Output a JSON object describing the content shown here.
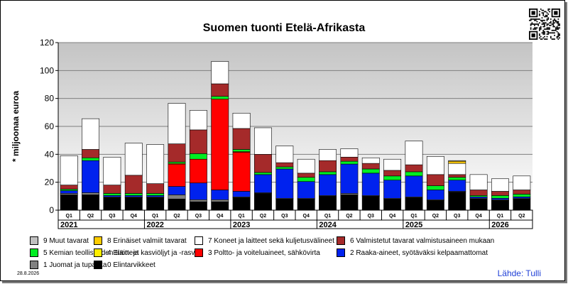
{
  "chart_data": {
    "type": "bar",
    "stacked": true,
    "title": "Suomen tuonti Etelä-Afrikasta",
    "ylabel": "* miljoonaa euroa",
    "ylim": [
      0,
      120
    ],
    "yticks": [
      0,
      20,
      40,
      60,
      80,
      100,
      120
    ],
    "grid": true,
    "legend_position": "bottom",
    "categories": [
      "Q1",
      "Q2",
      "Q3",
      "Q4",
      "Q1",
      "Q2",
      "Q3",
      "Q4",
      "Q1",
      "Q2",
      "Q3",
      "Q4",
      "Q1",
      "Q2",
      "Q3",
      "Q4",
      "Q1",
      "Q2",
      "Q3",
      "Q4",
      "Q1",
      "Q2"
    ],
    "years": [
      {
        "label": "2021",
        "start": 0,
        "count": 4
      },
      {
        "label": "2022",
        "start": 4,
        "count": 4
      },
      {
        "label": "2023",
        "start": 8,
        "count": 4
      },
      {
        "label": "2024",
        "start": 12,
        "count": 4
      },
      {
        "label": "2025",
        "start": 16,
        "count": 4
      },
      {
        "label": "2026",
        "start": 20,
        "count": 2
      }
    ],
    "series": [
      {
        "name": "0 Elintarvikkeet",
        "color": "#000000",
        "values": [
          11,
          11,
          9,
          9,
          9,
          8,
          6,
          6,
          9,
          12,
          8,
          8,
          10,
          11,
          10,
          8,
          9,
          7,
          13,
          8,
          7,
          8
        ]
      },
      {
        "name": "1 Juomat ja tupakka",
        "color": "#808080",
        "values": [
          1,
          1.5,
          0.5,
          0.5,
          0.5,
          3,
          1.5,
          1.5,
          0.5,
          0.5,
          0.5,
          0.5,
          0.5,
          1,
          0.5,
          0.5,
          0.5,
          0.5,
          0.5,
          0.5,
          0.5,
          0.5
        ]
      },
      {
        "name": "2 Raaka-aineet, syötäväksi kelpaamattomat",
        "color": "#0022ee",
        "values": [
          2,
          23,
          1,
          1,
          1,
          6,
          12,
          7,
          4,
          13,
          21,
          12,
          15,
          21,
          16,
          13,
          15,
          7,
          8,
          1,
          1,
          1
        ]
      },
      {
        "name": "3 Poltto- ja voiteluaineet, sähkövirta",
        "color": "#ff0000",
        "values": [
          0,
          0,
          0,
          0,
          0,
          16,
          17,
          65,
          28,
          0,
          0,
          0,
          0,
          0,
          0,
          0,
          0,
          0,
          0,
          0,
          0,
          0
        ]
      },
      {
        "name": "4 Eläin- ja kasviöljyt ja -rasvat",
        "color": "#ffee00",
        "values": [
          0,
          0,
          0,
          0,
          0,
          0.5,
          0,
          0,
          0.5,
          0,
          0,
          0,
          0,
          0,
          0,
          0,
          0,
          0,
          0,
          0,
          0,
          0
        ]
      },
      {
        "name": "5 Kemian teollisuuden tuotteet",
        "color": "#00ee22",
        "values": [
          1,
          2,
          1.5,
          1.5,
          1.5,
          1,
          4,
          2,
          1.5,
          1.5,
          1.5,
          3,
          2,
          2,
          3,
          3,
          3,
          3,
          2,
          1,
          2,
          2
        ]
      },
      {
        "name": "6 Valmistetut tavarat valmistusaineen mukaan",
        "color": "#a52a2a",
        "values": [
          3,
          6,
          6,
          13,
          7,
          13,
          17,
          9,
          15,
          13,
          3,
          3,
          8,
          3,
          4,
          4,
          5,
          8,
          2,
          4,
          3,
          3
        ]
      },
      {
        "name": "7 Koneet ja laitteet sekä kuljetusvälineet",
        "color": "#ffffff",
        "values": [
          21,
          22,
          20,
          23,
          28,
          29,
          14,
          16,
          11,
          19,
          12,
          10,
          8,
          6,
          4,
          8,
          17,
          13,
          8,
          11,
          9,
          10
        ]
      },
      {
        "name": "8 Erinäiset valmiit tavarat",
        "color": "#ffcc00",
        "values": [
          0,
          0,
          0,
          0,
          0,
          0,
          0,
          0,
          0,
          0,
          0,
          0,
          0,
          0,
          0,
          0,
          0,
          0,
          1.5,
          0,
          0,
          0
        ]
      },
      {
        "name": "9 Muut tavarat",
        "color": "#c0c0c0",
        "values": [
          0,
          0,
          0,
          0,
          0,
          0,
          0,
          0,
          0,
          0,
          0,
          0,
          0,
          0,
          0,
          0,
          0,
          0,
          0.5,
          0,
          0,
          0
        ]
      }
    ]
  },
  "legend": {
    "rows": [
      [
        {
          "name": "9 Muut tavarat",
          "color": "#c0c0c0"
        },
        {
          "name": "8 Erinäiset valmiit tavarat",
          "color": "#ffcc00"
        },
        {
          "name": "7 Koneet ja laitteet sekä kuljetusvälineet",
          "color": "#ffffff"
        },
        {
          "name": "6 Valmistetut tavarat valmistusaineen mukaan",
          "color": "#a52a2a"
        }
      ],
      [
        {
          "name": "5 Kemian teollisuuden tuotteet",
          "color": "#00ee22"
        },
        {
          "name": "4 Eläin- ja kasviöljyt ja -rasvat",
          "color": "#ffee00"
        },
        {
          "name": "3 Poltto- ja voiteluaineet, sähkövirta",
          "color": "#ff0000"
        },
        {
          "name": "2 Raaka-aineet, syötäväksi kelpaamattomat",
          "color": "#0022ee"
        }
      ],
      [
        {
          "name": "1 Juomat ja tupakka",
          "color": "#808080"
        },
        {
          "name": "0 Elintarvikkeet",
          "color": "#000000"
        }
      ]
    ]
  },
  "footer": {
    "date": "28.8.2026",
    "source": "Lähde: Tulli"
  },
  "qr_icon": "qr-code-icon"
}
